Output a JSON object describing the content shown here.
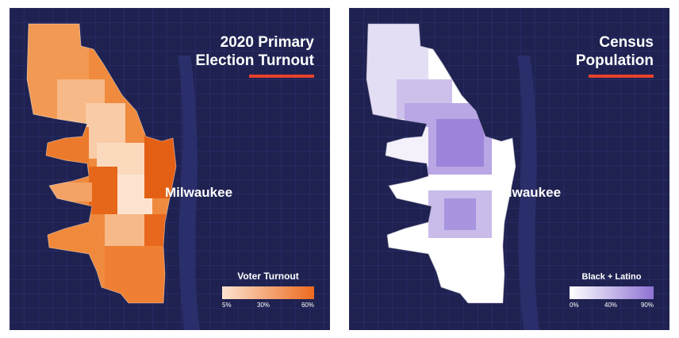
{
  "maps": [
    {
      "title_line1": "2020 Primary",
      "title_line2": "Election Turnout",
      "city_label": "Milwaukee",
      "legend": {
        "title": "Voter Turnout",
        "ticks": [
          "5%",
          "30%",
          "60%"
        ],
        "color_low": "#fde3cf",
        "color_high": "#ec6a1f"
      }
    },
    {
      "title_line1": "Census",
      "title_line2": "Population",
      "city_label": "Milwaukee",
      "legend": {
        "title": "Black + Latino",
        "ticks": [
          "0%",
          "40%",
          "90%"
        ],
        "color_low": "#ffffff",
        "color_high": "#8e72d4"
      }
    }
  ],
  "colors": {
    "background": "#1f2250",
    "accent_bar": "#e8412b",
    "street_lines": "#2d3278"
  }
}
